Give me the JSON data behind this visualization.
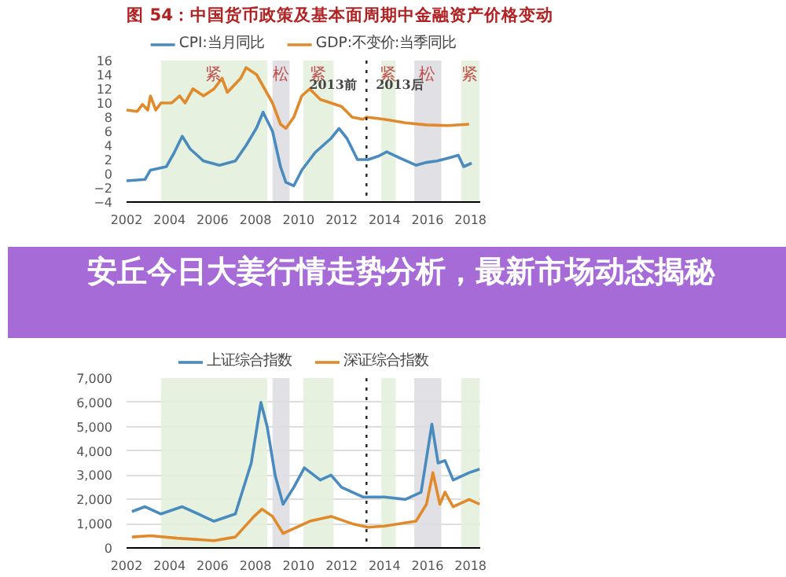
{
  "chart_data": [
    {
      "type": "line",
      "title": "图 54：中国货币政策及基本面周期中金融资产价格变动",
      "xlim": [
        2002,
        2018.45
      ],
      "xticks": [
        2002,
        2004,
        2006,
        2008,
        2010,
        2012,
        2014,
        2016,
        2018
      ],
      "ylim": [
        -4,
        16
      ],
      "yticks": [
        -4,
        -2,
        0,
        2,
        4,
        6,
        8,
        10,
        12,
        14,
        16
      ],
      "grid": false,
      "legend": "top",
      "line_style": "solid",
      "marker": "none",
      "series": [
        {
          "name": "CPI:当月同比",
          "color": "#4a8bbf",
          "x": [
            2002.0,
            2002.86,
            2003.11,
            2003.85,
            2004.22,
            2004.59,
            2004.96,
            2005.58,
            2006.32,
            2007.06,
            2007.56,
            2008.05,
            2008.35,
            2008.79,
            2009.16,
            2009.41,
            2009.78,
            2010.15,
            2010.77,
            2011.51,
            2011.88,
            2012.25,
            2012.74,
            2013.23,
            2013.73,
            2014.1,
            2014.72,
            2015.46,
            2015.95,
            2016.44,
            2016.94,
            2017.43,
            2017.68,
            2018.05
          ],
          "values": [
            -1,
            -0.8,
            0.5,
            1,
            3,
            5.3,
            3.5,
            1.8,
            1.2,
            1.8,
            4,
            6.5,
            8.7,
            6,
            1,
            -1.2,
            -1.7,
            0.5,
            3,
            5,
            6.4,
            5,
            2,
            2,
            2.5,
            3.1,
            2.2,
            1.2,
            1.6,
            1.8,
            2.2,
            2.6,
            1,
            1.5
          ]
        },
        {
          "name": "GDP:不变价:当季同比",
          "color": "#e08a2c",
          "x": [
            2002.0,
            2002.49,
            2002.74,
            2002.99,
            2003.11,
            2003.36,
            2003.6,
            2004.1,
            2004.47,
            2004.72,
            2005.09,
            2005.58,
            2006.07,
            2006.44,
            2006.69,
            2007.31,
            2007.56,
            2008.05,
            2008.42,
            2008.79,
            2009.16,
            2009.41,
            2009.78,
            2010.15,
            2010.52,
            2011.01,
            2011.51,
            2012.0,
            2012.49,
            2012.99,
            2013.16,
            2013.98,
            2014.96,
            2015.95,
            2016.94,
            2017.93
          ],
          "values": [
            9,
            8.8,
            9.8,
            9,
            11,
            9,
            10,
            10,
            11,
            10,
            12,
            11,
            12,
            13.5,
            11.5,
            13.5,
            15,
            14,
            12,
            10,
            7,
            6.4,
            8,
            11,
            12,
            10.5,
            10,
            9.5,
            8,
            7.7,
            8,
            7.7,
            7.2,
            6.9,
            6.8,
            7
          ]
        }
      ],
      "bands": [
        {
          "axis": "x",
          "from": 2003.6,
          "to": 2008.54,
          "label": "紧",
          "color": "#e3efdc"
        },
        {
          "axis": "x",
          "from": 2008.79,
          "to": 2009.58,
          "label": "松",
          "color": "#dedde2"
        },
        {
          "axis": "x",
          "from": 2010.22,
          "to": 2011.63,
          "label": "紧",
          "color": "#e3efdc"
        },
        {
          "axis": "x",
          "from": 2013.85,
          "to": 2014.52,
          "label": "紧",
          "color": "#e3efdc"
        },
        {
          "axis": "x",
          "from": 2015.38,
          "to": 2016.64,
          "label": "松",
          "color": "#dedde2"
        },
        {
          "axis": "x",
          "from": 2017.56,
          "to": 2018.42,
          "label": "紧",
          "color": "#e3efdc"
        }
      ],
      "ref_lines": [
        {
          "axis": "x",
          "value": 2013.16,
          "color": "#222222",
          "line_style": "dotted"
        }
      ],
      "annotations": [
        {
          "text": "2013前",
          "x": 2011.6,
          "y": 11.6
        },
        {
          "text": "2013后",
          "x": 2014.7,
          "y": 11.6
        }
      ]
    },
    {
      "type": "other",
      "title": "安丘今日大姜行情走势分析，最新市场动态揭秘"
    },
    {
      "type": "line",
      "xlim": [
        2002,
        2018.45
      ],
      "xticks": [
        2002,
        2004,
        2006,
        2008,
        2010,
        2012,
        2014,
        2016,
        2018
      ],
      "ylim": [
        0,
        7000
      ],
      "yticks": [
        0,
        {
          "value": 1000,
          "label": "1,000"
        },
        {
          "value": 2000,
          "label": "2,000"
        },
        {
          "value": 3000,
          "label": "3,000"
        },
        {
          "value": 4000,
          "label": "4,000"
        },
        {
          "value": 5000,
          "label": "5,000"
        },
        {
          "value": 6000,
          "label": "6,000"
        },
        {
          "value": 7000,
          "label": "7,000"
        }
      ],
      "grid": "y",
      "legend": "top",
      "line_style": "solid",
      "marker": "none",
      "series": [
        {
          "name": "上证综合指数",
          "color": "#4a8bbf",
          "x": [
            2002.25,
            2002.86,
            2003.6,
            2004.59,
            2006.07,
            2007.06,
            2007.8,
            2008.25,
            2008.54,
            2008.91,
            2009.28,
            2009.78,
            2010.27,
            2011.01,
            2011.51,
            2012.0,
            2012.99,
            2013.98,
            2014.96,
            2015.7,
            2016.2,
            2016.49,
            2016.81,
            2017.19,
            2017.93,
            2018.42
          ],
          "values": [
            1500,
            1700,
            1400,
            1700,
            1100,
            1400,
            3500,
            6000,
            5000,
            3000,
            1800,
            2500,
            3300,
            2800,
            3000,
            2500,
            2100,
            2100,
            2000,
            2300,
            5100,
            3500,
            3600,
            2800,
            3100,
            3250
          ]
        },
        {
          "name": "深证综合指数",
          "color": "#e08a2c",
          "x": [
            2002.25,
            2003.11,
            2004.35,
            2006.07,
            2007.06,
            2007.93,
            2008.3,
            2008.79,
            2009.28,
            2009.78,
            2010.52,
            2011.51,
            2012.49,
            2013.23,
            2013.98,
            2015.46,
            2015.95,
            2016.25,
            2016.57,
            2016.81,
            2017.19,
            2017.93,
            2018.42
          ],
          "values": [
            450,
            500,
            400,
            300,
            450,
            1300,
            1600,
            1300,
            600,
            800,
            1100,
            1300,
            1000,
            850,
            900,
            1100,
            1800,
            3100,
            1800,
            2300,
            1700,
            2000,
            1800
          ]
        }
      ],
      "bands": [
        {
          "axis": "x",
          "from": 2003.6,
          "to": 2008.54,
          "color": "#e3efdc"
        },
        {
          "axis": "x",
          "from": 2008.79,
          "to": 2009.58,
          "color": "#dedde2"
        },
        {
          "axis": "x",
          "from": 2010.22,
          "to": 2011.63,
          "color": "#e3efdc"
        },
        {
          "axis": "x",
          "from": 2013.85,
          "to": 2014.52,
          "color": "#e3efdc"
        },
        {
          "axis": "x",
          "from": 2015.38,
          "to": 2016.64,
          "color": "#dedde2"
        },
        {
          "axis": "x",
          "from": 2017.56,
          "to": 2018.42,
          "color": "#e3efdc"
        }
      ],
      "ref_lines": [
        {
          "axis": "x",
          "value": 2013.16,
          "color": "#222222",
          "line_style": "dotted"
        }
      ]
    }
  ]
}
